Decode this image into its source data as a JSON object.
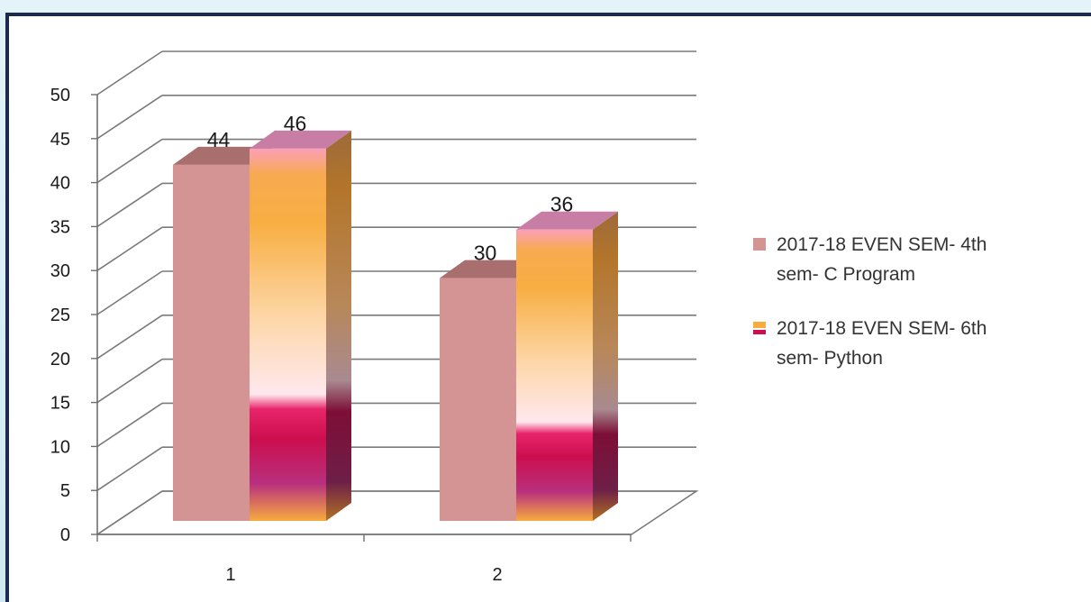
{
  "chart_data": {
    "type": "bar",
    "categories": [
      "1",
      "2"
    ],
    "series": [
      {
        "name": "2017-18 EVEN SEM- 4th sem- C  Program",
        "name_lines": [
          "2017-18 EVEN SEM- 4th",
          "sem- C  Program"
        ],
        "values": [
          44,
          30
        ],
        "color": "#d49494"
      },
      {
        "name": "2017-18 EVEN SEM- 6th sem- Python",
        "name_lines": [
          "2017-18 EVEN SEM- 6th",
          "sem- Python"
        ],
        "values": [
          46,
          36
        ],
        "color": "#f7ac3e"
      }
    ],
    "title": "",
    "xlabel": "",
    "ylabel": "",
    "ylim": [
      0,
      50
    ],
    "yticks": [
      "0",
      "5",
      "10",
      "15",
      "20",
      "25",
      "30",
      "35",
      "40",
      "45",
      "50"
    ],
    "grid": true,
    "legend": "right",
    "style": "3d-column"
  }
}
